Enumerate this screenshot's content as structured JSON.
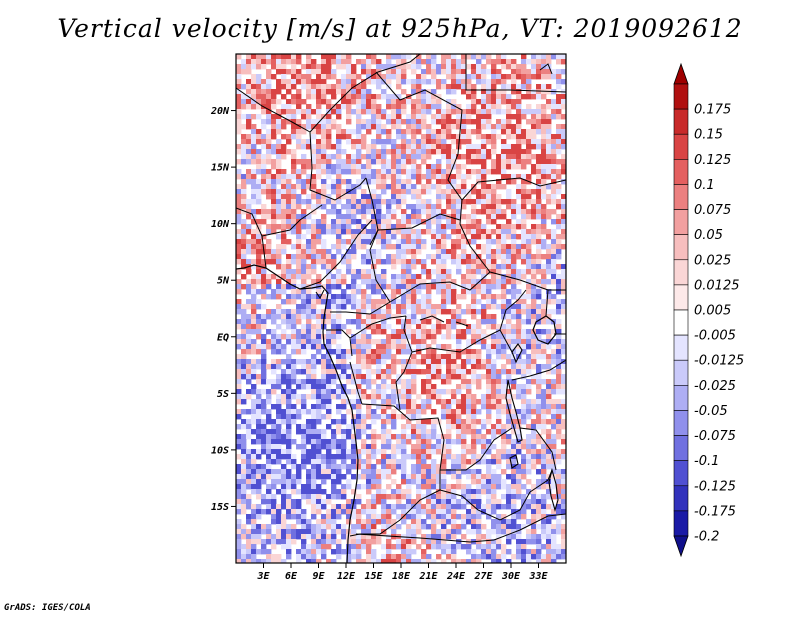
{
  "title": "Vertical velocity [m/s] at 925hPa, VT: 2019092612",
  "credit": "GrADS: IGES/COLA",
  "map": {
    "lon_range": [
      0,
      36
    ],
    "lat_range": [
      -20,
      25
    ],
    "lat_ticks": [
      {
        "value": 20,
        "label": "20N"
      },
      {
        "value": 15,
        "label": "15N"
      },
      {
        "value": 10,
        "label": "10N"
      },
      {
        "value": 5,
        "label": "5N"
      },
      {
        "value": 0,
        "label": "EQ"
      },
      {
        "value": -5,
        "label": "5S"
      },
      {
        "value": -10,
        "label": "10S"
      },
      {
        "value": -15,
        "label": "15S"
      }
    ],
    "lon_ticks": [
      {
        "value": 3,
        "label": "3E"
      },
      {
        "value": 6,
        "label": "6E"
      },
      {
        "value": 9,
        "label": "9E"
      },
      {
        "value": 12,
        "label": "12E"
      },
      {
        "value": 15,
        "label": "15E"
      },
      {
        "value": 18,
        "label": "18E"
      },
      {
        "value": 21,
        "label": "21E"
      },
      {
        "value": 24,
        "label": "24E"
      },
      {
        "value": 27,
        "label": "27E"
      },
      {
        "value": 30,
        "label": "30E"
      },
      {
        "value": 33,
        "label": "33E"
      }
    ]
  },
  "colorbar": {
    "levels": [
      {
        "label": "0.175",
        "color": "#b01010"
      },
      {
        "label": "0.15",
        "color": "#c82a2a"
      },
      {
        "label": "0.125",
        "color": "#d94444"
      },
      {
        "label": "0.1",
        "color": "#e46060"
      },
      {
        "label": "0.075",
        "color": "#ec8080"
      },
      {
        "label": "0.05",
        "color": "#f2a0a0"
      },
      {
        "label": "0.025",
        "color": "#f7bebe"
      },
      {
        "label": "0.0125",
        "color": "#fad6d6"
      },
      {
        "label": "0.005",
        "color": "#fde9e9"
      },
      {
        "label": "-0.005",
        "color": "#ffffff"
      },
      {
        "label": "-0.0125",
        "color": "#e4e4ff"
      },
      {
        "label": "-0.025",
        "color": "#cacafa"
      },
      {
        "label": "-0.05",
        "color": "#aeaef4"
      },
      {
        "label": "-0.075",
        "color": "#9090ec"
      },
      {
        "label": "-0.1",
        "color": "#7070e0"
      },
      {
        "label": "-0.125",
        "color": "#5050d2"
      },
      {
        "label": "-0.175",
        "color": "#3232bc"
      },
      {
        "label": "-0.2",
        "color": "#1a1aa6"
      }
    ],
    "top_color": "#9e0000",
    "bottom_color": "#10108c"
  }
}
